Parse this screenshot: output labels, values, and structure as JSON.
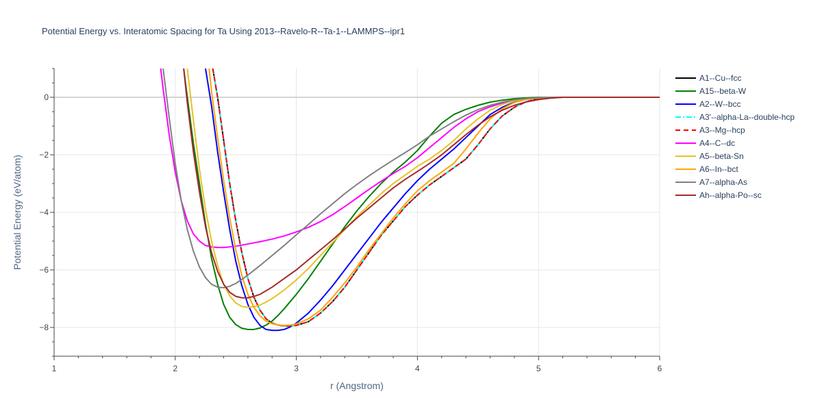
{
  "chart_data": {
    "type": "line",
    "title": "Potential Energy vs. Interatomic Spacing for Ta Using 2013--Ravelo-R--Ta-1--LAMMPS--ipr1",
    "xlabel": "r (Angstrom)",
    "ylabel": "Potential Energy (eV/atom)",
    "xlim": [
      1,
      6
    ],
    "ylim": [
      -9,
      1
    ],
    "xticks": [
      1,
      2,
      3,
      4,
      5,
      6
    ],
    "yticks": [
      0,
      -2,
      -4,
      -6,
      -8
    ],
    "grid": true,
    "legend_position": "right",
    "series": [
      {
        "name": "A1--Cu--fcc",
        "color": "#000000",
        "dash": "solid",
        "x": [
          2.31,
          2.35,
          2.4,
          2.45,
          2.5,
          2.55,
          2.6,
          2.65,
          2.7,
          2.75,
          2.8,
          2.85,
          2.9,
          2.95,
          3.0,
          3.1,
          3.2,
          3.3,
          3.4,
          3.5,
          3.6,
          3.7,
          3.8,
          3.9,
          4.0,
          4.1,
          4.2,
          4.3,
          4.4,
          4.5,
          4.6,
          4.7,
          4.8,
          4.9,
          5.0,
          5.1,
          5.2,
          5.5,
          6.0
        ],
        "y": [
          1.0,
          0.0,
          -1.5,
          -3.0,
          -4.3,
          -5.4,
          -6.3,
          -6.95,
          -7.4,
          -7.7,
          -7.85,
          -7.92,
          -7.95,
          -7.95,
          -7.93,
          -7.8,
          -7.5,
          -7.1,
          -6.6,
          -6.0,
          -5.4,
          -4.8,
          -4.3,
          -3.8,
          -3.4,
          -3.05,
          -2.75,
          -2.45,
          -2.15,
          -1.65,
          -1.1,
          -0.65,
          -0.35,
          -0.15,
          -0.05,
          -0.01,
          0,
          0,
          0
        ]
      },
      {
        "name": "A15--beta-W",
        "color": "#008000",
        "dash": "solid",
        "x": [
          2.07,
          2.1,
          2.15,
          2.2,
          2.25,
          2.3,
          2.35,
          2.4,
          2.45,
          2.5,
          2.55,
          2.6,
          2.65,
          2.7,
          2.75,
          2.8,
          2.85,
          2.9,
          3.0,
          3.1,
          3.2,
          3.3,
          3.4,
          3.5,
          3.6,
          3.7,
          3.8,
          3.9,
          4.0,
          4.1,
          4.2,
          4.3,
          4.4,
          4.5,
          4.6,
          4.7,
          4.8,
          4.9,
          5.0,
          5.1,
          5.2,
          5.5,
          6.0
        ],
        "y": [
          1.0,
          0.0,
          -1.6,
          -3.0,
          -4.4,
          -5.6,
          -6.5,
          -7.2,
          -7.65,
          -7.9,
          -8.03,
          -8.07,
          -8.07,
          -8.02,
          -7.92,
          -7.78,
          -7.58,
          -7.35,
          -6.85,
          -6.3,
          -5.7,
          -5.1,
          -4.5,
          -3.95,
          -3.45,
          -3.0,
          -2.6,
          -2.25,
          -1.85,
          -1.35,
          -0.9,
          -0.6,
          -0.42,
          -0.28,
          -0.17,
          -0.1,
          -0.05,
          -0.02,
          0,
          0,
          0,
          0,
          0
        ]
      },
      {
        "name": "A2--W--bcc",
        "color": "#0000ff",
        "dash": "solid",
        "x": [
          2.25,
          2.3,
          2.35,
          2.4,
          2.45,
          2.5,
          2.55,
          2.6,
          2.65,
          2.7,
          2.75,
          2.8,
          2.85,
          2.9,
          2.95,
          3.0,
          3.1,
          3.2,
          3.3,
          3.4,
          3.5,
          3.6,
          3.7,
          3.8,
          3.9,
          4.0,
          4.1,
          4.2,
          4.3,
          4.4,
          4.5,
          4.6,
          4.7,
          4.8,
          4.9,
          5.0,
          5.1,
          5.2,
          5.5,
          6.0
        ],
        "y": [
          1.0,
          -0.3,
          -1.9,
          -3.3,
          -4.6,
          -5.7,
          -6.55,
          -7.2,
          -7.65,
          -7.93,
          -8.07,
          -8.1,
          -8.1,
          -8.07,
          -7.98,
          -7.85,
          -7.5,
          -7.05,
          -6.55,
          -6.0,
          -5.45,
          -4.9,
          -4.35,
          -3.85,
          -3.35,
          -2.9,
          -2.5,
          -2.15,
          -1.8,
          -1.4,
          -1.0,
          -0.6,
          -0.35,
          -0.17,
          -0.07,
          -0.02,
          0,
          0,
          0,
          0
        ]
      },
      {
        "name": "A3'--alpha-La--double-hcp",
        "color": "#00ffff",
        "dash": "dashdot",
        "x": [
          2.31,
          2.35,
          2.4,
          2.45,
          2.5,
          2.55,
          2.6,
          2.65,
          2.7,
          2.75,
          2.8,
          2.85,
          2.9,
          2.95,
          3.0,
          3.1,
          3.2,
          3.3,
          3.4,
          3.5,
          3.6,
          3.7,
          3.8,
          3.9,
          4.0,
          4.1,
          4.2,
          4.3,
          4.4,
          4.5,
          4.6,
          4.7,
          4.8,
          4.9,
          5.0,
          5.1,
          5.2,
          5.5,
          6.0
        ],
        "y": [
          1.0,
          0.0,
          -1.5,
          -3.0,
          -4.3,
          -5.4,
          -6.3,
          -6.95,
          -7.4,
          -7.7,
          -7.85,
          -7.92,
          -7.95,
          -7.95,
          -7.93,
          -7.8,
          -7.5,
          -7.1,
          -6.6,
          -6.0,
          -5.4,
          -4.8,
          -4.3,
          -3.8,
          -3.4,
          -3.05,
          -2.75,
          -2.45,
          -2.15,
          -1.65,
          -1.1,
          -0.65,
          -0.35,
          -0.15,
          -0.05,
          -0.01,
          0,
          0,
          0
        ]
      },
      {
        "name": "A3--Mg--hcp",
        "color": "#ff0000",
        "dash": "dash",
        "x": [
          2.31,
          2.35,
          2.4,
          2.45,
          2.5,
          2.55,
          2.6,
          2.65,
          2.7,
          2.75,
          2.8,
          2.85,
          2.9,
          2.95,
          3.0,
          3.1,
          3.2,
          3.3,
          3.4,
          3.5,
          3.6,
          3.7,
          3.8,
          3.9,
          4.0,
          4.1,
          4.2,
          4.3,
          4.4,
          4.5,
          4.6,
          4.7,
          4.8,
          4.9,
          5.0,
          5.1,
          5.2,
          5.5,
          6.0
        ],
        "y": [
          1.0,
          0.0,
          -1.5,
          -3.0,
          -4.3,
          -5.4,
          -6.3,
          -6.95,
          -7.4,
          -7.7,
          -7.85,
          -7.92,
          -7.95,
          -7.95,
          -7.93,
          -7.8,
          -7.5,
          -7.1,
          -6.6,
          -6.0,
          -5.4,
          -4.8,
          -4.3,
          -3.8,
          -3.4,
          -3.05,
          -2.75,
          -2.45,
          -2.15,
          -1.65,
          -1.1,
          -0.65,
          -0.35,
          -0.15,
          -0.05,
          -0.01,
          0,
          0,
          0
        ]
      },
      {
        "name": "A4--C--dc",
        "color": "#ff00ff",
        "dash": "solid",
        "x": [
          1.88,
          1.9,
          1.95,
          2.0,
          2.05,
          2.1,
          2.15,
          2.2,
          2.25,
          2.3,
          2.35,
          2.4,
          2.5,
          2.6,
          2.7,
          2.8,
          2.9,
          3.0,
          3.1,
          3.2,
          3.3,
          3.4,
          3.5,
          3.6,
          3.7,
          3.8,
          3.9,
          4.0,
          4.1,
          4.2,
          4.3,
          4.4,
          4.5,
          4.6,
          4.7,
          4.8,
          4.9,
          5.0,
          5.1,
          5.2,
          5.5,
          6.0
        ],
        "y": [
          1.0,
          0.3,
          -1.3,
          -2.6,
          -3.6,
          -4.3,
          -4.75,
          -5.0,
          -5.15,
          -5.2,
          -5.22,
          -5.22,
          -5.18,
          -5.1,
          -5.02,
          -4.93,
          -4.82,
          -4.68,
          -4.52,
          -4.32,
          -4.08,
          -3.8,
          -3.5,
          -3.2,
          -2.92,
          -2.65,
          -2.4,
          -2.1,
          -1.75,
          -1.4,
          -1.05,
          -0.75,
          -0.5,
          -0.33,
          -0.2,
          -0.11,
          -0.05,
          -0.02,
          0,
          0,
          0,
          0
        ]
      },
      {
        "name": "A5--beta-Sn",
        "color": "#e6c229",
        "dash": "solid",
        "x": [
          2.1,
          2.15,
          2.2,
          2.25,
          2.3,
          2.35,
          2.4,
          2.45,
          2.5,
          2.55,
          2.6,
          2.65,
          2.7,
          2.75,
          2.8,
          2.9,
          3.0,
          3.1,
          3.2,
          3.3,
          3.4,
          3.5,
          3.6,
          3.7,
          3.8,
          3.9,
          4.0,
          4.1,
          4.2,
          4.3,
          4.4,
          4.5,
          4.6,
          4.7,
          4.8,
          4.9,
          5.0,
          5.1,
          5.2,
          5.5,
          6.0
        ],
        "y": [
          1.0,
          -0.8,
          -2.5,
          -3.9,
          -5.0,
          -5.85,
          -6.5,
          -6.9,
          -7.15,
          -7.27,
          -7.3,
          -7.28,
          -7.22,
          -7.12,
          -7.0,
          -6.7,
          -6.35,
          -5.95,
          -5.5,
          -5.05,
          -4.6,
          -4.15,
          -3.75,
          -3.35,
          -3.0,
          -2.7,
          -2.4,
          -2.15,
          -1.85,
          -1.5,
          -1.1,
          -0.75,
          -0.45,
          -0.25,
          -0.12,
          -0.05,
          -0.01,
          0,
          0,
          0,
          0
        ]
      },
      {
        "name": "A6--In--bct",
        "color": "#ffa500",
        "dash": "solid",
        "x": [
          2.28,
          2.3,
          2.35,
          2.4,
          2.45,
          2.5,
          2.55,
          2.6,
          2.65,
          2.7,
          2.75,
          2.8,
          2.85,
          2.9,
          2.95,
          3.0,
          3.1,
          3.2,
          3.3,
          3.4,
          3.5,
          3.6,
          3.7,
          3.8,
          3.9,
          4.0,
          4.1,
          4.2,
          4.3,
          4.4,
          4.5,
          4.6,
          4.7,
          4.8,
          4.9,
          5.0,
          5.1,
          5.2,
          5.5,
          6.0
        ],
        "y": [
          1.0,
          0.2,
          -1.4,
          -2.9,
          -4.2,
          -5.3,
          -6.2,
          -6.85,
          -7.3,
          -7.6,
          -7.78,
          -7.87,
          -7.92,
          -7.93,
          -7.92,
          -7.88,
          -7.7,
          -7.4,
          -6.95,
          -6.45,
          -5.9,
          -5.3,
          -4.75,
          -4.2,
          -3.7,
          -3.25,
          -2.9,
          -2.6,
          -2.3,
          -1.8,
          -1.25,
          -0.75,
          -0.4,
          -0.18,
          -0.07,
          -0.02,
          0,
          0,
          0,
          0
        ]
      },
      {
        "name": "A7--alpha-As",
        "color": "#808080",
        "dash": "solid",
        "x": [
          1.9,
          1.95,
          2.0,
          2.05,
          2.1,
          2.15,
          2.2,
          2.25,
          2.3,
          2.35,
          2.4,
          2.45,
          2.5,
          2.55,
          2.6,
          2.7,
          2.8,
          2.9,
          3.0,
          3.1,
          3.2,
          3.3,
          3.4,
          3.5,
          3.6,
          3.7,
          3.8,
          3.9,
          4.0,
          4.1,
          4.2,
          4.3,
          4.4,
          4.5,
          4.6,
          4.7,
          4.8,
          4.9,
          5.0,
          5.1,
          5.2,
          5.5,
          6.0
        ],
        "y": [
          1.0,
          -0.7,
          -2.3,
          -3.6,
          -4.6,
          -5.35,
          -5.9,
          -6.27,
          -6.5,
          -6.6,
          -6.62,
          -6.57,
          -6.47,
          -6.33,
          -6.18,
          -5.85,
          -5.5,
          -5.15,
          -4.78,
          -4.42,
          -4.05,
          -3.7,
          -3.35,
          -3.03,
          -2.73,
          -2.45,
          -2.18,
          -1.92,
          -1.65,
          -1.35,
          -1.1,
          -0.85,
          -0.62,
          -0.43,
          -0.28,
          -0.17,
          -0.09,
          -0.04,
          -0.01,
          0,
          0,
          0,
          0
        ]
      },
      {
        "name": "Ah--alpha-Po--sc",
        "color": "#a52a2a",
        "dash": "solid",
        "x": [
          2.07,
          2.1,
          2.15,
          2.2,
          2.25,
          2.3,
          2.35,
          2.4,
          2.45,
          2.5,
          2.55,
          2.6,
          2.65,
          2.7,
          2.8,
          2.9,
          3.0,
          3.1,
          3.2,
          3.3,
          3.4,
          3.5,
          3.6,
          3.7,
          3.8,
          3.9,
          4.0,
          4.1,
          4.2,
          4.3,
          4.4,
          4.5,
          4.6,
          4.7,
          4.8,
          4.9,
          5.0,
          5.1,
          5.2,
          5.5,
          6.0
        ],
        "y": [
          1.0,
          -0.2,
          -1.9,
          -3.3,
          -4.5,
          -5.4,
          -6.05,
          -6.5,
          -6.78,
          -6.92,
          -6.97,
          -6.97,
          -6.92,
          -6.85,
          -6.6,
          -6.3,
          -6.0,
          -5.65,
          -5.3,
          -4.95,
          -4.58,
          -4.2,
          -3.85,
          -3.5,
          -3.15,
          -2.85,
          -2.58,
          -2.3,
          -2.0,
          -1.65,
          -1.3,
          -0.97,
          -0.68,
          -0.45,
          -0.28,
          -0.16,
          -0.08,
          -0.03,
          0,
          0,
          0
        ]
      }
    ]
  }
}
